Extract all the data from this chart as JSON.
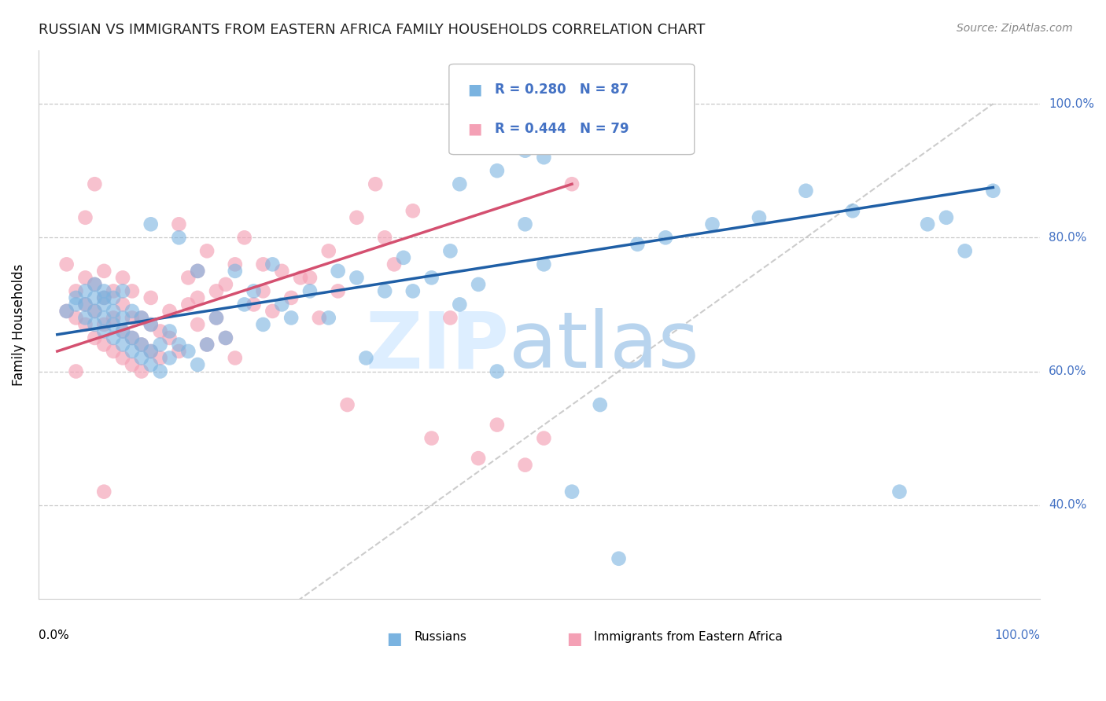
{
  "title": "RUSSIAN VS IMMIGRANTS FROM EASTERN AFRICA FAMILY HOUSEHOLDS CORRELATION CHART",
  "source": "Source: ZipAtlas.com",
  "ylabel": "Family Households",
  "y_tick_labels": [
    "40.0%",
    "60.0%",
    "80.0%",
    "100.0%"
  ],
  "y_tick_vals": [
    0.4,
    0.6,
    0.8,
    1.0
  ],
  "legend_label_blue": "Russians",
  "legend_label_pink": "Immigrants from Eastern Africa",
  "blue_color": "#7ab3e0",
  "pink_color": "#f4a0b5",
  "trend_blue_color": "#1f5fa6",
  "trend_pink_color": "#d45070",
  "diagonal_color": "#c0c0c0",
  "background_color": "#ffffff",
  "grid_color": "#c8c8c8",
  "ytick_label_color": "#4472c4",
  "title_color": "#222222",
  "source_color": "#888888",
  "legend_r_color": "#4472c4",
  "xlim": [
    -0.02,
    1.05
  ],
  "ylim": [
    0.26,
    1.08
  ],
  "blue_trend": [
    0.0,
    1.0,
    0.655,
    0.875
  ],
  "pink_trend": [
    0.0,
    0.55,
    0.63,
    0.88
  ],
  "blue_x": [
    0.01,
    0.02,
    0.02,
    0.03,
    0.03,
    0.03,
    0.04,
    0.04,
    0.04,
    0.04,
    0.05,
    0.05,
    0.05,
    0.05,
    0.05,
    0.06,
    0.06,
    0.06,
    0.06,
    0.07,
    0.07,
    0.07,
    0.07,
    0.08,
    0.08,
    0.08,
    0.09,
    0.09,
    0.09,
    0.1,
    0.1,
    0.1,
    0.1,
    0.11,
    0.11,
    0.12,
    0.12,
    0.13,
    0.13,
    0.14,
    0.15,
    0.15,
    0.16,
    0.17,
    0.18,
    0.19,
    0.2,
    0.21,
    0.22,
    0.23,
    0.24,
    0.25,
    0.27,
    0.29,
    0.3,
    0.32,
    0.33,
    0.35,
    0.37,
    0.38,
    0.4,
    0.42,
    0.43,
    0.45,
    0.47,
    0.5,
    0.52,
    0.55,
    0.58,
    0.6,
    0.62,
    0.65,
    0.7,
    0.75,
    0.8,
    0.85,
    0.9,
    0.93,
    0.95,
    0.97,
    1.0,
    0.43,
    0.47,
    0.5,
    0.52,
    0.55,
    0.58
  ],
  "blue_y": [
    0.69,
    0.7,
    0.71,
    0.68,
    0.7,
    0.72,
    0.67,
    0.69,
    0.71,
    0.73,
    0.66,
    0.68,
    0.7,
    0.71,
    0.72,
    0.65,
    0.67,
    0.69,
    0.71,
    0.64,
    0.66,
    0.68,
    0.72,
    0.63,
    0.65,
    0.69,
    0.62,
    0.64,
    0.68,
    0.61,
    0.63,
    0.67,
    0.82,
    0.6,
    0.64,
    0.62,
    0.66,
    0.64,
    0.8,
    0.63,
    0.61,
    0.75,
    0.64,
    0.68,
    0.65,
    0.75,
    0.7,
    0.72,
    0.67,
    0.76,
    0.7,
    0.68,
    0.72,
    0.68,
    0.75,
    0.74,
    0.62,
    0.72,
    0.77,
    0.72,
    0.74,
    0.78,
    0.7,
    0.73,
    0.6,
    0.82,
    0.76,
    0.42,
    0.55,
    0.32,
    0.79,
    0.8,
    0.82,
    0.83,
    0.87,
    0.84,
    0.42,
    0.82,
    0.83,
    0.78,
    0.87,
    0.88,
    0.9,
    0.93,
    0.92,
    0.96,
    0.96
  ],
  "pink_x": [
    0.01,
    0.01,
    0.02,
    0.02,
    0.03,
    0.03,
    0.03,
    0.04,
    0.04,
    0.04,
    0.05,
    0.05,
    0.05,
    0.05,
    0.06,
    0.06,
    0.06,
    0.07,
    0.07,
    0.07,
    0.07,
    0.08,
    0.08,
    0.08,
    0.08,
    0.09,
    0.09,
    0.09,
    0.1,
    0.1,
    0.1,
    0.11,
    0.11,
    0.12,
    0.12,
    0.13,
    0.13,
    0.14,
    0.14,
    0.15,
    0.15,
    0.15,
    0.16,
    0.16,
    0.17,
    0.17,
    0.18,
    0.18,
    0.19,
    0.19,
    0.2,
    0.21,
    0.22,
    0.22,
    0.23,
    0.24,
    0.25,
    0.26,
    0.27,
    0.28,
    0.29,
    0.3,
    0.31,
    0.32,
    0.34,
    0.35,
    0.36,
    0.38,
    0.4,
    0.42,
    0.45,
    0.47,
    0.5,
    0.52,
    0.55,
    0.02,
    0.03,
    0.04,
    0.05
  ],
  "pink_y": [
    0.69,
    0.76,
    0.68,
    0.72,
    0.67,
    0.7,
    0.74,
    0.65,
    0.69,
    0.73,
    0.64,
    0.67,
    0.71,
    0.75,
    0.63,
    0.68,
    0.72,
    0.62,
    0.66,
    0.7,
    0.74,
    0.61,
    0.65,
    0.68,
    0.72,
    0.6,
    0.64,
    0.68,
    0.63,
    0.67,
    0.71,
    0.62,
    0.66,
    0.65,
    0.69,
    0.63,
    0.82,
    0.7,
    0.74,
    0.67,
    0.71,
    0.75,
    0.64,
    0.78,
    0.68,
    0.72,
    0.65,
    0.73,
    0.62,
    0.76,
    0.8,
    0.7,
    0.72,
    0.76,
    0.69,
    0.75,
    0.71,
    0.74,
    0.74,
    0.68,
    0.78,
    0.72,
    0.55,
    0.83,
    0.88,
    0.8,
    0.76,
    0.84,
    0.5,
    0.68,
    0.47,
    0.52,
    0.46,
    0.5,
    0.88,
    0.6,
    0.83,
    0.88,
    0.42
  ]
}
